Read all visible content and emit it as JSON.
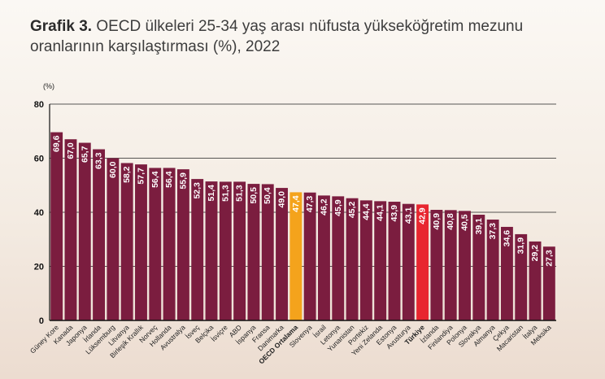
{
  "header": {
    "title_lead": "Grafik 3.",
    "title_rest": " OECD ülkeleri 25-34 yaş arası nüfusta yükseköğretim mezunu oranlarının karşılaştırması (%), 2022"
  },
  "colors": {
    "bar": "#7b1d3f",
    "oecd": "#f4a31c",
    "turkiye": "#e8262f",
    "axis": "#111111",
    "grid": "#222222"
  },
  "chart_data": {
    "type": "bar",
    "title": "OECD ülkeleri 25-34 yaş arası nüfusta yükseköğretim mezunu oranlarının karşılaştırması (%), 2022",
    "ylabel": "(%)",
    "ylim": [
      0,
      80
    ],
    "yticks": [
      0,
      20,
      40,
      60,
      80
    ],
    "grid": true,
    "categories": [
      "Güney Kore",
      "Kanada",
      "Japonya",
      "İrlanda",
      "Lüksemburg",
      "Litvanya",
      "Birleşik Krallık",
      "Norveç",
      "Hollanda",
      "Avustralya",
      "İsveç",
      "Belçika",
      "İsviçre",
      "ABD",
      "İspanya",
      "Fransa",
      "Danimarka",
      "OECD Ortalama",
      "Slovenya",
      "İsrail",
      "Letonya",
      "Yunanistan",
      "Portekiz",
      "Yeni Zelanda",
      "Estonya",
      "Avusturya",
      "Türkiye",
      "İzlanda",
      "Finlandiya",
      "Polonya",
      "Slovakya",
      "Almanya",
      "Çekya",
      "Macaristan",
      "İtalya",
      "Meksika"
    ],
    "values": [
      69.6,
      67.0,
      65.7,
      63.3,
      60.0,
      58.2,
      57.7,
      56.4,
      56.4,
      55.9,
      52.3,
      51.4,
      51.3,
      51.3,
      50.5,
      50.4,
      49.0,
      47.4,
      47.3,
      46.2,
      45.9,
      45.2,
      44.4,
      44.1,
      43.9,
      43.1,
      42.9,
      40.9,
      40.8,
      40.5,
      39.1,
      37.3,
      34.6,
      31.9,
      29.2,
      27.3
    ],
    "value_labels": [
      "69,6",
      "67,0",
      "65,7",
      "63,3",
      "60,0",
      "58,2",
      "57,7",
      "56,4",
      "56,4",
      "55,9",
      "52,3",
      "51,4",
      "51,3",
      "51,3",
      "50,5",
      "50,4",
      "49,0",
      "47,4",
      "47,3",
      "46,2",
      "45,9",
      "45,2",
      "44,4",
      "44,1",
      "43,9",
      "43,1",
      "42,9",
      "40,9",
      "40,8",
      "40,5",
      "39,1",
      "37,3",
      "34,6",
      "31,9",
      "29,2",
      "27,3"
    ],
    "highlight": {
      "OECD Ortalama": "oecd",
      "Türkiye": "turkiye"
    }
  }
}
